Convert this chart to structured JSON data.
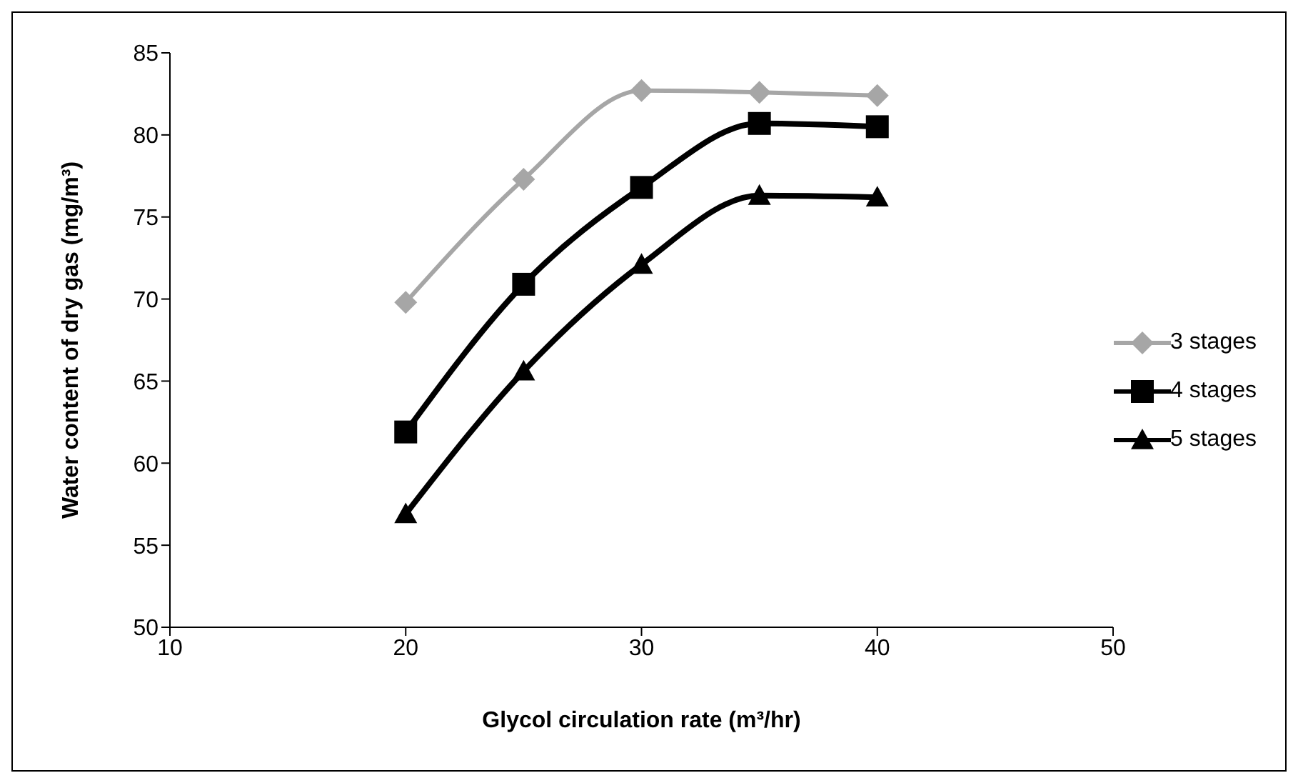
{
  "chart_data": {
    "type": "line",
    "xlabel": "Glycol circulation rate (m³/hr)",
    "ylabel": "Water content of dry gas (mg/m³)",
    "x": [
      20,
      25,
      30,
      35,
      40
    ],
    "series": [
      {
        "name": "3 stages",
        "color": "#a6a6a6",
        "marker": "diamond",
        "values": [
          69.8,
          77.3,
          82.7,
          82.6,
          82.4
        ]
      },
      {
        "name": "4 stages",
        "color": "#000000",
        "marker": "square",
        "values": [
          61.9,
          70.9,
          76.8,
          80.7,
          80.5
        ]
      },
      {
        "name": "5 stages",
        "color": "#000000",
        "marker": "triangle",
        "values": [
          56.9,
          65.6,
          72.1,
          76.3,
          76.2
        ]
      }
    ],
    "xlim": [
      10,
      50
    ],
    "xticks": [
      10,
      20,
      30,
      40,
      50
    ],
    "ylim": [
      50,
      85
    ],
    "yticks": [
      50,
      55,
      60,
      65,
      70,
      75,
      80,
      85
    ],
    "grid": false,
    "legend": "right"
  }
}
